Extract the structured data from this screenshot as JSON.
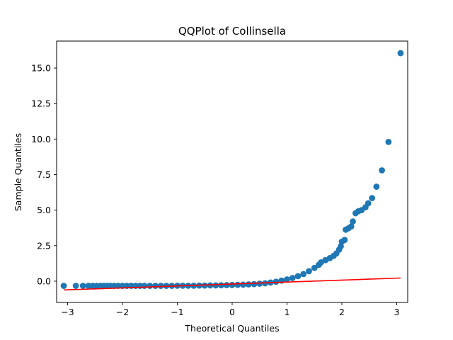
{
  "chart_data": {
    "type": "scatter",
    "title": "QQPlot of Collinsella",
    "xlabel": "Theoretical Quantiles",
    "ylabel": "Sample Quantiles",
    "xlim": [
      -3.2,
      3.2
    ],
    "ylim": [
      -1.5,
      16.9
    ],
    "xticks": [
      -3,
      -2,
      -1,
      0,
      1,
      2,
      3
    ],
    "xtick_labels": [
      "−3",
      "−2",
      "−1",
      "0",
      "1",
      "2",
      "3"
    ],
    "yticks": [
      0.0,
      2.5,
      5.0,
      7.5,
      10.0,
      12.5,
      15.0
    ],
    "ytick_labels": [
      "0.0",
      "2.5",
      "5.0",
      "7.5",
      "10.0",
      "12.5",
      "15.0"
    ],
    "grid": false,
    "marker_color": "#1f77b4",
    "series": [
      {
        "points": [
          [
            -3.07,
            -0.33
          ],
          [
            -2.85,
            -0.33
          ],
          [
            -2.72,
            -0.33
          ],
          [
            -2.62,
            -0.33
          ],
          [
            -2.54,
            -0.33
          ],
          [
            -2.47,
            -0.33
          ],
          [
            -2.4,
            -0.33
          ],
          [
            -2.34,
            -0.33
          ],
          [
            -2.28,
            -0.33
          ],
          [
            -2.22,
            -0.33
          ],
          [
            -2.15,
            -0.33
          ],
          [
            -2.08,
            -0.33
          ],
          [
            -2.0,
            -0.33
          ],
          [
            -1.92,
            -0.33
          ],
          [
            -1.84,
            -0.33
          ],
          [
            -1.76,
            -0.33
          ],
          [
            -1.68,
            -0.33
          ],
          [
            -1.6,
            -0.33
          ],
          [
            -1.5,
            -0.33
          ],
          [
            -1.4,
            -0.33
          ],
          [
            -1.3,
            -0.33
          ],
          [
            -1.2,
            -0.33
          ],
          [
            -1.1,
            -0.33
          ],
          [
            -1.0,
            -0.32
          ],
          [
            -0.9,
            -0.32
          ],
          [
            -0.8,
            -0.32
          ],
          [
            -0.7,
            -0.32
          ],
          [
            -0.6,
            -0.31
          ],
          [
            -0.5,
            -0.31
          ],
          [
            -0.4,
            -0.3
          ],
          [
            -0.3,
            -0.3
          ],
          [
            -0.2,
            -0.29
          ],
          [
            -0.1,
            -0.28
          ],
          [
            0.0,
            -0.27
          ],
          [
            0.1,
            -0.26
          ],
          [
            0.2,
            -0.25
          ],
          [
            0.3,
            -0.23
          ],
          [
            0.4,
            -0.21
          ],
          [
            0.5,
            -0.18
          ],
          [
            0.6,
            -0.15
          ],
          [
            0.7,
            -0.1
          ],
          [
            0.8,
            -0.04
          ],
          [
            0.9,
            0.04
          ],
          [
            1.0,
            0.12
          ],
          [
            1.1,
            0.22
          ],
          [
            1.2,
            0.35
          ],
          [
            1.3,
            0.5
          ],
          [
            1.4,
            0.7
          ],
          [
            1.5,
            0.93
          ],
          [
            1.58,
            1.15
          ],
          [
            1.62,
            1.32
          ],
          [
            1.7,
            1.48
          ],
          [
            1.78,
            1.62
          ],
          [
            1.85,
            1.78
          ],
          [
            1.9,
            1.95
          ],
          [
            1.95,
            2.22
          ],
          [
            1.98,
            2.45
          ],
          [
            2.0,
            2.78
          ],
          [
            2.05,
            2.9
          ],
          [
            2.07,
            3.62
          ],
          [
            2.12,
            3.72
          ],
          [
            2.17,
            3.85
          ],
          [
            2.2,
            4.2
          ],
          [
            2.25,
            4.78
          ],
          [
            2.3,
            4.92
          ],
          [
            2.36,
            5.0
          ],
          [
            2.43,
            5.2
          ],
          [
            2.48,
            5.48
          ],
          [
            2.55,
            5.85
          ],
          [
            2.63,
            6.65
          ],
          [
            2.73,
            7.8
          ],
          [
            2.85,
            9.8
          ],
          [
            3.07,
            16.05
          ]
        ]
      }
    ],
    "reference_line": {
      "color": "#ff0000",
      "x": [
        -3.07,
        3.07
      ],
      "y": [
        -0.62,
        0.22
      ]
    }
  }
}
